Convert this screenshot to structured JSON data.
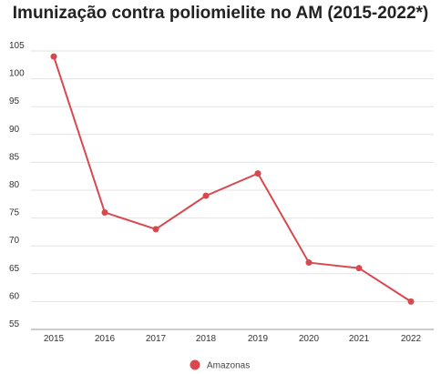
{
  "chart_data": {
    "type": "line",
    "title": "Imunização contra poliomielite no AM (2015-2022*)",
    "xlabel": "",
    "ylabel": "",
    "categories": [
      "2015",
      "2016",
      "2017",
      "2018",
      "2019",
      "2020",
      "2021",
      "2022"
    ],
    "series": [
      {
        "name": "Amazonas",
        "values": [
          104,
          76,
          73,
          79,
          83,
          67,
          66,
          60
        ],
        "color": "#d9484f"
      }
    ],
    "ylim": [
      55,
      105
    ],
    "yticks": [
      55,
      60,
      65,
      70,
      75,
      80,
      85,
      90,
      95,
      100,
      105
    ],
    "grid": true,
    "legend": "bottom-center"
  }
}
